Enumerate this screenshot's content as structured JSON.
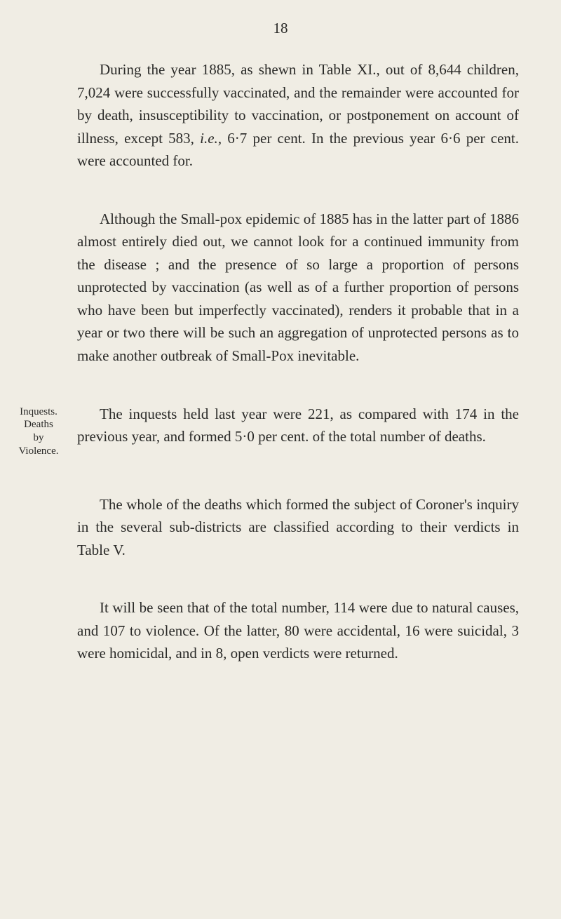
{
  "page": {
    "number": "18",
    "background_color": "#f0ede4",
    "text_color": "#2a2a28",
    "font_family": "Georgia, 'Times New Roman', serif",
    "body_fontsize": 21,
    "margin_note_fontsize": 15,
    "line_height": 1.55
  },
  "paragraphs": [
    {
      "text_parts": [
        {
          "t": "During the year 1885, as shewn in Table XI., out of 8,644 children, 7,024 were successfully vaccinated, and the remainder were accounted for by death, insusceptibility to vaccination, or postponement on account of illness, except 583, ",
          "style": "n"
        },
        {
          "t": "i.e.",
          "style": "i"
        },
        {
          "t": ", 6·7 per cent. In the previous year 6·6 per cent. were accounted for.",
          "style": "n"
        }
      ]
    },
    {
      "text_parts": [
        {
          "t": "Although the Small-pox epidemic of 1885 has in the latter part of 1886 almost entirely died out, we cannot look for a continued immunity from the disease ; and the presence of so large a proportion of persons unprotected by vaccination (as well as of a further proportion of persons who have been but imperfectly vaccinated), renders it probable that in a year or two there will be such an aggregation of unprotected persons as to make another outbreak of Small-Pox inevitable.",
          "style": "n"
        }
      ]
    }
  ],
  "margin_block": {
    "note_lines": [
      "Inquests.",
      "Deaths",
      "by",
      "Violence."
    ],
    "text_parts": [
      {
        "t": "The inquests held last year were 221, as compared with 174 in the previous year, and formed 5·0 per cent. of the total number of deaths.",
        "style": "n"
      }
    ]
  },
  "paragraphs_after": [
    {
      "text_parts": [
        {
          "t": "The whole of the deaths which formed the subject of Coroner's inquiry in the several sub-districts are classified according to their verdicts in Table V.",
          "style": "n"
        }
      ]
    },
    {
      "text_parts": [
        {
          "t": "It will be seen that of the total number, 114 were due to natural causes, and 107 to violence. Of the latter, 80 were accidental, 16 were suicidal, 3 were homicidal, and in 8, open verdicts were returned.",
          "style": "n"
        }
      ]
    }
  ]
}
